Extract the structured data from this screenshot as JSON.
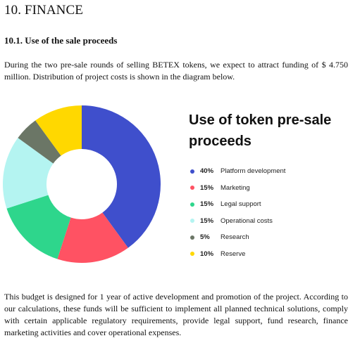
{
  "section": {
    "title": "10. FINANCE",
    "subtitle": "10.1. Use of the sale proceeds"
  },
  "intro_text": "During the two pre-sale rounds of selling BETEX tokens, we expect to attract funding of $ 4.750 million. Distribution of project costs is shown in the diagram below.",
  "chart_data": {
    "type": "pie",
    "donut": true,
    "title": "Use of token pre-sale proceeds",
    "legend_position": "right",
    "categories": [
      "Platform development",
      "Marketing",
      "Legal support",
      "Operational costs",
      "Research",
      "Reserve"
    ],
    "values": [
      40,
      15,
      15,
      15,
      5,
      10
    ],
    "labels": [
      "40%",
      "15%",
      "15%",
      "15%",
      "5%",
      "10%"
    ],
    "colors": [
      "#3f4fcc",
      "#ff5263",
      "#2ed68c",
      "#b4f4f1",
      "#6b7666",
      "#ffd800"
    ]
  },
  "outro_text": "This budget is designed for 1 year of active development and promotion of the project. According to our calculations, these funds will be sufficient to implement all planned technical solutions, comply with certain applicable regulatory requirements, provide legal support, fund research, finance marketing activities and cover operational expenses."
}
